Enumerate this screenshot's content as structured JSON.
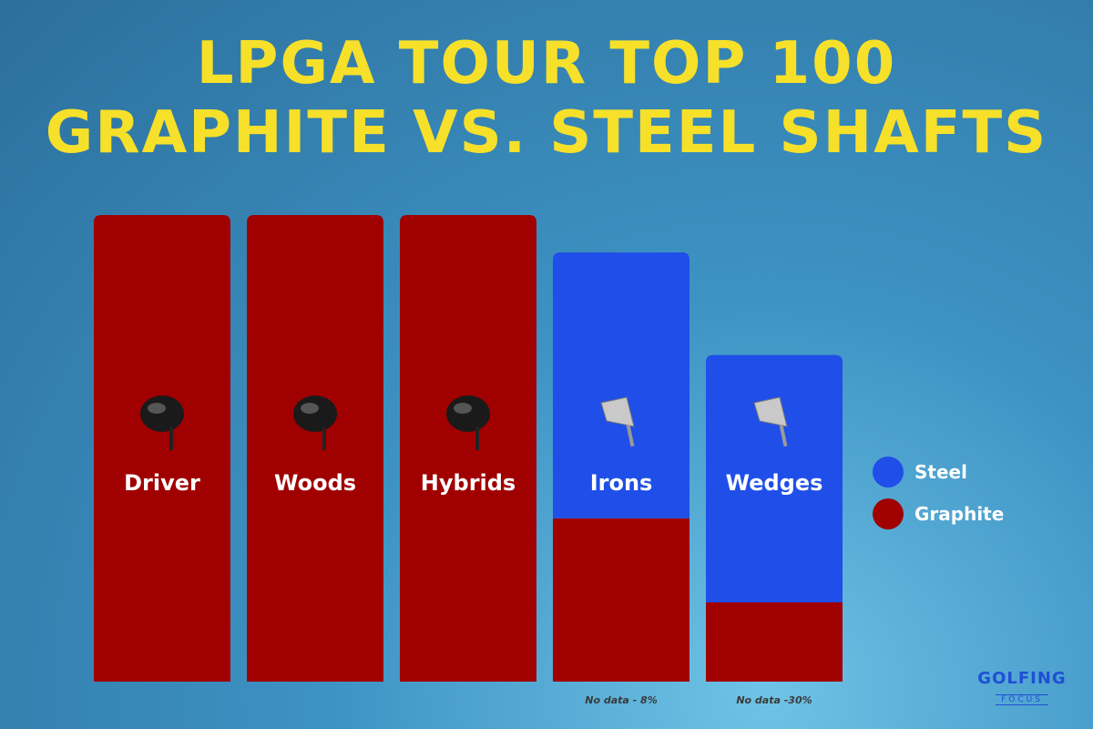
{
  "title": {
    "line1": "LPGA TOUR TOP 100",
    "line2": "GRAPHITE VS. STEEL SHAFTS"
  },
  "colors": {
    "steel": "#1f4fe8",
    "graphite": "#a00000",
    "title": "#f6e02a"
  },
  "legend": [
    {
      "label": "Steel",
      "color": "#1f4fe8"
    },
    {
      "label": "Graphite",
      "color": "#a00000"
    }
  ],
  "logo": {
    "main": "GOLFING",
    "sub": "FOCUS"
  },
  "chart_data": {
    "type": "bar",
    "stacked": true,
    "categories": [
      "Driver",
      "Woods",
      "Hybrids",
      "Irons",
      "Wedges"
    ],
    "series": [
      {
        "name": "Graphite",
        "color": "#a00000",
        "values": [
          100,
          100,
          100,
          35,
          17
        ]
      },
      {
        "name": "Steel",
        "color": "#1f4fe8",
        "values": [
          0,
          0,
          0,
          57,
          53
        ]
      }
    ],
    "annotations": [
      "",
      "",
      "",
      "No data - 8%",
      "No data -30%"
    ],
    "ylim": [
      0,
      100
    ],
    "legend_position": "right",
    "grid": false
  }
}
